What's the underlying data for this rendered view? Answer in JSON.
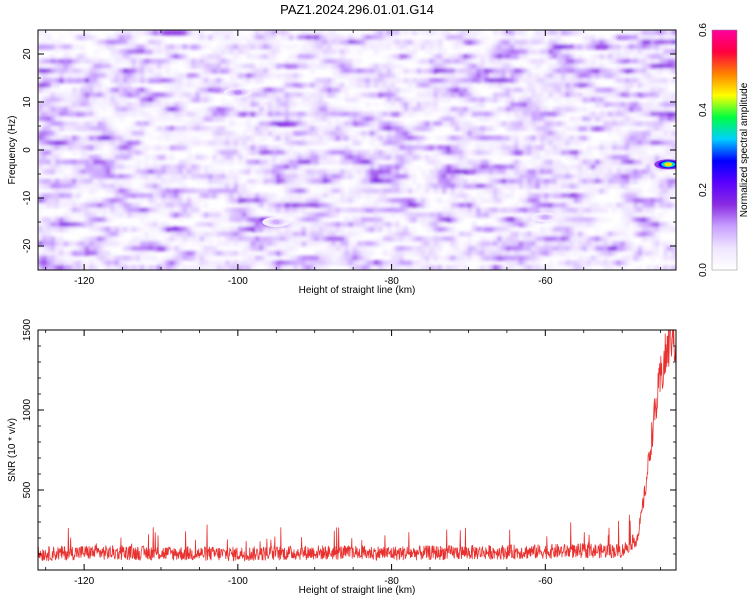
{
  "title": "PAZ1.2024.296.01.01.G14",
  "colors": {
    "snr_line": "#e8302e",
    "axis": "#000000",
    "colorbar_stops": [
      "#ffffff",
      "#f0e6ff",
      "#c8a0ff",
      "#8a2be2",
      "#5a00ff",
      "#0000ff",
      "#00d0ff",
      "#00ff40",
      "#ffff00",
      "#ff8000",
      "#ff0040",
      "#ff00a0"
    ]
  },
  "chart_data": [
    {
      "type": "heatmap",
      "title": "",
      "xlabel": "Height of straight line (km)",
      "ylabel": "Frequency (Hz)",
      "xlim": [
        -126,
        -43
      ],
      "ylim": [
        -25,
        25
      ],
      "x_ticks": [
        "-120",
        "-100",
        "-80",
        "-60"
      ],
      "x_tick_values": [
        -120,
        -100,
        -80,
        -60
      ],
      "y_ticks": [
        "20",
        "10",
        "0",
        "-10",
        "-20"
      ],
      "y_tick_values": [
        20,
        10,
        0,
        -10,
        -20
      ],
      "colorbar": {
        "label": "Normalized spectral amplitude",
        "range": [
          0.0,
          0.6
        ],
        "ticks": [
          "0.0",
          "0.2",
          "0.4",
          "0.6"
        ],
        "tick_values": [
          0.0,
          0.2,
          0.4,
          0.6
        ]
      },
      "hotspots": [
        {
          "x": -44,
          "y": -3,
          "value": 0.45
        },
        {
          "x": -100,
          "y": 12,
          "value": 0.12
        },
        {
          "x": -95,
          "y": -15,
          "value": 0.1
        },
        {
          "x": -60,
          "y": -14,
          "value": 0.1
        }
      ]
    },
    {
      "type": "line",
      "title": "",
      "xlabel": "Height of straight line (km)",
      "ylabel": "SNR (10 * v/v)",
      "xlim": [
        -126,
        -43
      ],
      "ylim": [
        0,
        1500
      ],
      "x_ticks": [
        "-120",
        "-100",
        "-80",
        "-60"
      ],
      "x_tick_values": [
        -120,
        -100,
        -80,
        -60
      ],
      "y_ticks": [
        "500",
        "1000",
        "1500"
      ],
      "y_tick_values": [
        500,
        1000,
        1500
      ],
      "series": [
        {
          "x": [
            -126,
            -120,
            -110,
            -100,
            -90,
            -80,
            -70,
            -60,
            -56,
            -50,
            -48,
            -47,
            -46,
            -45,
            -44,
            -43.5,
            -43
          ],
          "y": [
            100,
            110,
            105,
            100,
            110,
            105,
            110,
            115,
            120,
            120,
            200,
            500,
            900,
            1200,
            1400,
            1500,
            1400
          ]
        }
      ]
    }
  ]
}
